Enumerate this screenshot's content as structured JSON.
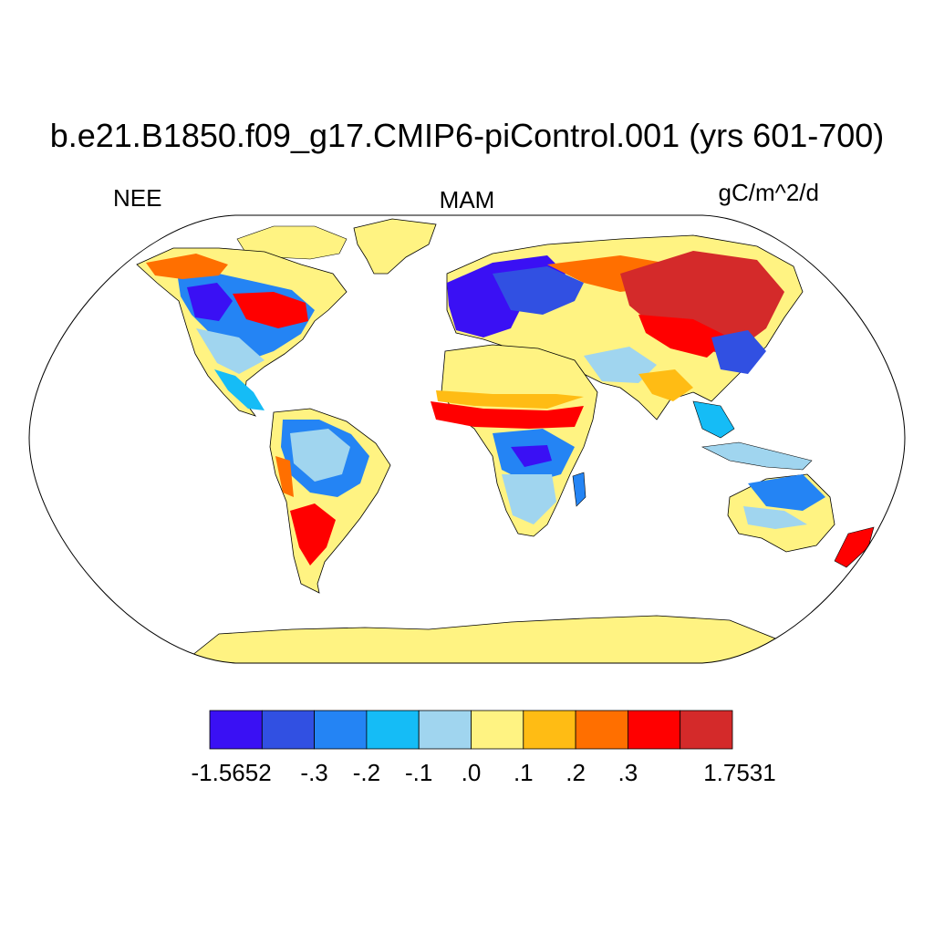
{
  "title": "b.e21.B1850.f09_g17.CMIP6-piControl.001 (yrs 601-700)",
  "left_string": "NEE",
  "center_string": "MAM",
  "right_string": "gC/m^2/d",
  "projection": "Robinson",
  "colorbar": {
    "levels": [
      "-1.5652",
      "-.3",
      "-.2",
      "-.1",
      ".0",
      ".1",
      ".2",
      ".3",
      "1.7531"
    ],
    "colors": [
      "#3a10f4",
      "#3150e2",
      "#2484f4",
      "#15bcf6",
      "#a0d5ef",
      "#fff382",
      "#ffbc14",
      "#ff6f00",
      "#ff0000",
      "#d42a2a"
    ]
  },
  "chart_data": {
    "type": "heatmap",
    "variable": "NEE",
    "season": "MAM",
    "units": "gC/m^2/d",
    "range": [
      -1.5652,
      1.7531
    ],
    "contour_levels": [
      -0.3,
      -0.2,
      -0.1,
      0.0,
      0.1,
      0.2,
      0.3
    ]
  }
}
